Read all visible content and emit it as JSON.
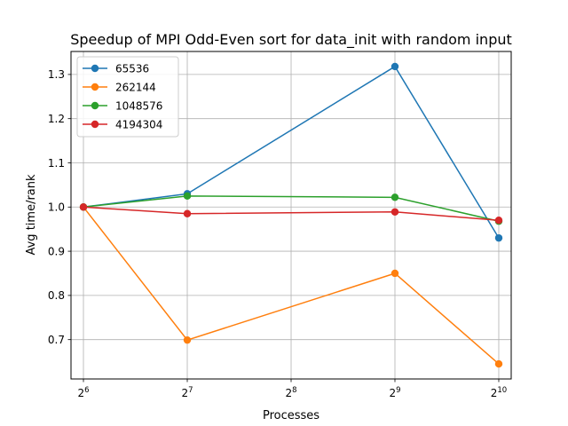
{
  "chart_data": {
    "type": "line",
    "title": "Speedup of MPI Odd-Even sort for data_init with random input",
    "xlabel": "Processes",
    "ylabel": "Avg time/rank",
    "x_scale": "log2",
    "x_ticks": [
      {
        "value": 64,
        "base": "2",
        "exp": "6"
      },
      {
        "value": 128,
        "base": "2",
        "exp": "7"
      },
      {
        "value": 256,
        "base": "2",
        "exp": "8"
      },
      {
        "value": 512,
        "base": "2",
        "exp": "9"
      },
      {
        "value": 1024,
        "base": "2",
        "exp": "10"
      }
    ],
    "xlim": [
      58.9,
      1112.6
    ],
    "ylim": [
      0.611,
      1.352
    ],
    "y_ticks": [
      0.7,
      0.8,
      0.9,
      1.0,
      1.1,
      1.2,
      1.3
    ],
    "y_tick_labels": [
      "0.7",
      "0.8",
      "0.9",
      "1.0",
      "1.1",
      "1.2",
      "1.3"
    ],
    "grid": true,
    "legend_position": "top-left",
    "x": [
      64,
      128,
      512,
      1024
    ],
    "series": [
      {
        "name": "65536",
        "color": "#1f77b4",
        "values": [
          1.0,
          1.03,
          1.318,
          0.93
        ]
      },
      {
        "name": "262144",
        "color": "#ff7f0e",
        "values": [
          1.0,
          0.699,
          0.85,
          0.645
        ]
      },
      {
        "name": "1048576",
        "color": "#2ca02c",
        "values": [
          1.0,
          1.025,
          1.022,
          0.968
        ]
      },
      {
        "name": "4194304",
        "color": "#d62728",
        "values": [
          1.0,
          0.985,
          0.989,
          0.97
        ]
      }
    ]
  }
}
